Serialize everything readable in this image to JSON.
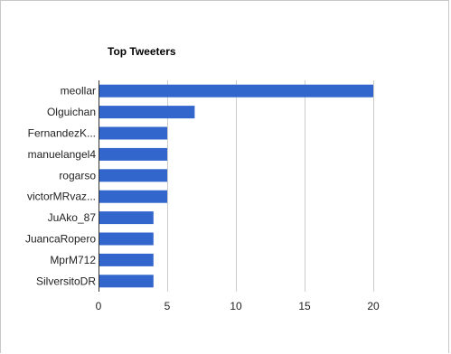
{
  "chart_data": {
    "type": "bar",
    "orientation": "horizontal",
    "title": "Top Tweeters",
    "xlabel": "",
    "ylabel": "",
    "categories": [
      "meollar",
      "Olguichan",
      "FernandezK...",
      "manuelangel4",
      "rogarso",
      "victorMRvaz...",
      "JuAko_87",
      "JuancaRopero",
      "MprM712",
      "SilversitoDR"
    ],
    "values": [
      20,
      7,
      5,
      5,
      5,
      5,
      4,
      4,
      4,
      4
    ],
    "xlim": [
      0,
      20
    ],
    "xticks": [
      "0",
      "5",
      "10",
      "15",
      "20"
    ],
    "grid": true,
    "legend": "none",
    "colors": {
      "bar": "#3366cc",
      "grid": "#cccccc",
      "axis": "#333333",
      "text": "#222222"
    }
  }
}
